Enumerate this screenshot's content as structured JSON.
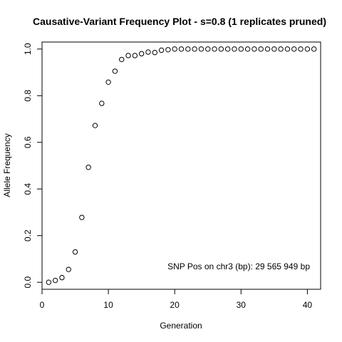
{
  "chart_data": {
    "type": "scatter",
    "title": "Causative-Variant Frequency Plot - s=0.8 (1 replicates pruned)",
    "xlabel": "Generation",
    "ylabel": "Allele Frequency",
    "xlim": [
      0,
      42
    ],
    "ylim": [
      -0.03,
      1.03
    ],
    "x_ticks": [
      0,
      10,
      20,
      30,
      40
    ],
    "x_tick_labels": [
      "0",
      "10",
      "20",
      "30",
      "40"
    ],
    "y_ticks": [
      0.0,
      0.2,
      0.4,
      0.6,
      0.8,
      1.0
    ],
    "y_tick_labels": [
      "0.0",
      "0.2",
      "0.4",
      "0.6",
      "0.8",
      "1.0"
    ],
    "grid": false,
    "marker": "open-circle",
    "annotation": "SNP Pos on chr3 (bp): 29 565 949 bp",
    "series": [
      {
        "x": [
          1,
          2,
          3,
          4,
          5,
          6,
          7,
          8,
          9,
          10,
          11,
          12,
          13,
          14,
          15,
          16,
          17,
          18,
          19,
          20,
          21,
          22,
          23,
          24,
          25,
          26,
          27,
          28,
          29,
          30,
          31,
          32,
          33,
          34,
          35,
          36,
          37,
          38,
          39,
          40,
          41
        ],
        "y": [
          0.0,
          0.008,
          0.02,
          0.055,
          0.13,
          0.278,
          0.493,
          0.672,
          0.767,
          0.858,
          0.905,
          0.955,
          0.972,
          0.972,
          0.98,
          0.987,
          0.985,
          0.995,
          0.997,
          1.0,
          1.0,
          1.0,
          1.0,
          1.0,
          1.0,
          1.0,
          1.0,
          1.0,
          1.0,
          1.0,
          1.0,
          1.0,
          1.0,
          1.0,
          1.0,
          1.0,
          1.0,
          1.0,
          1.0,
          1.0,
          1.0
        ]
      }
    ]
  }
}
